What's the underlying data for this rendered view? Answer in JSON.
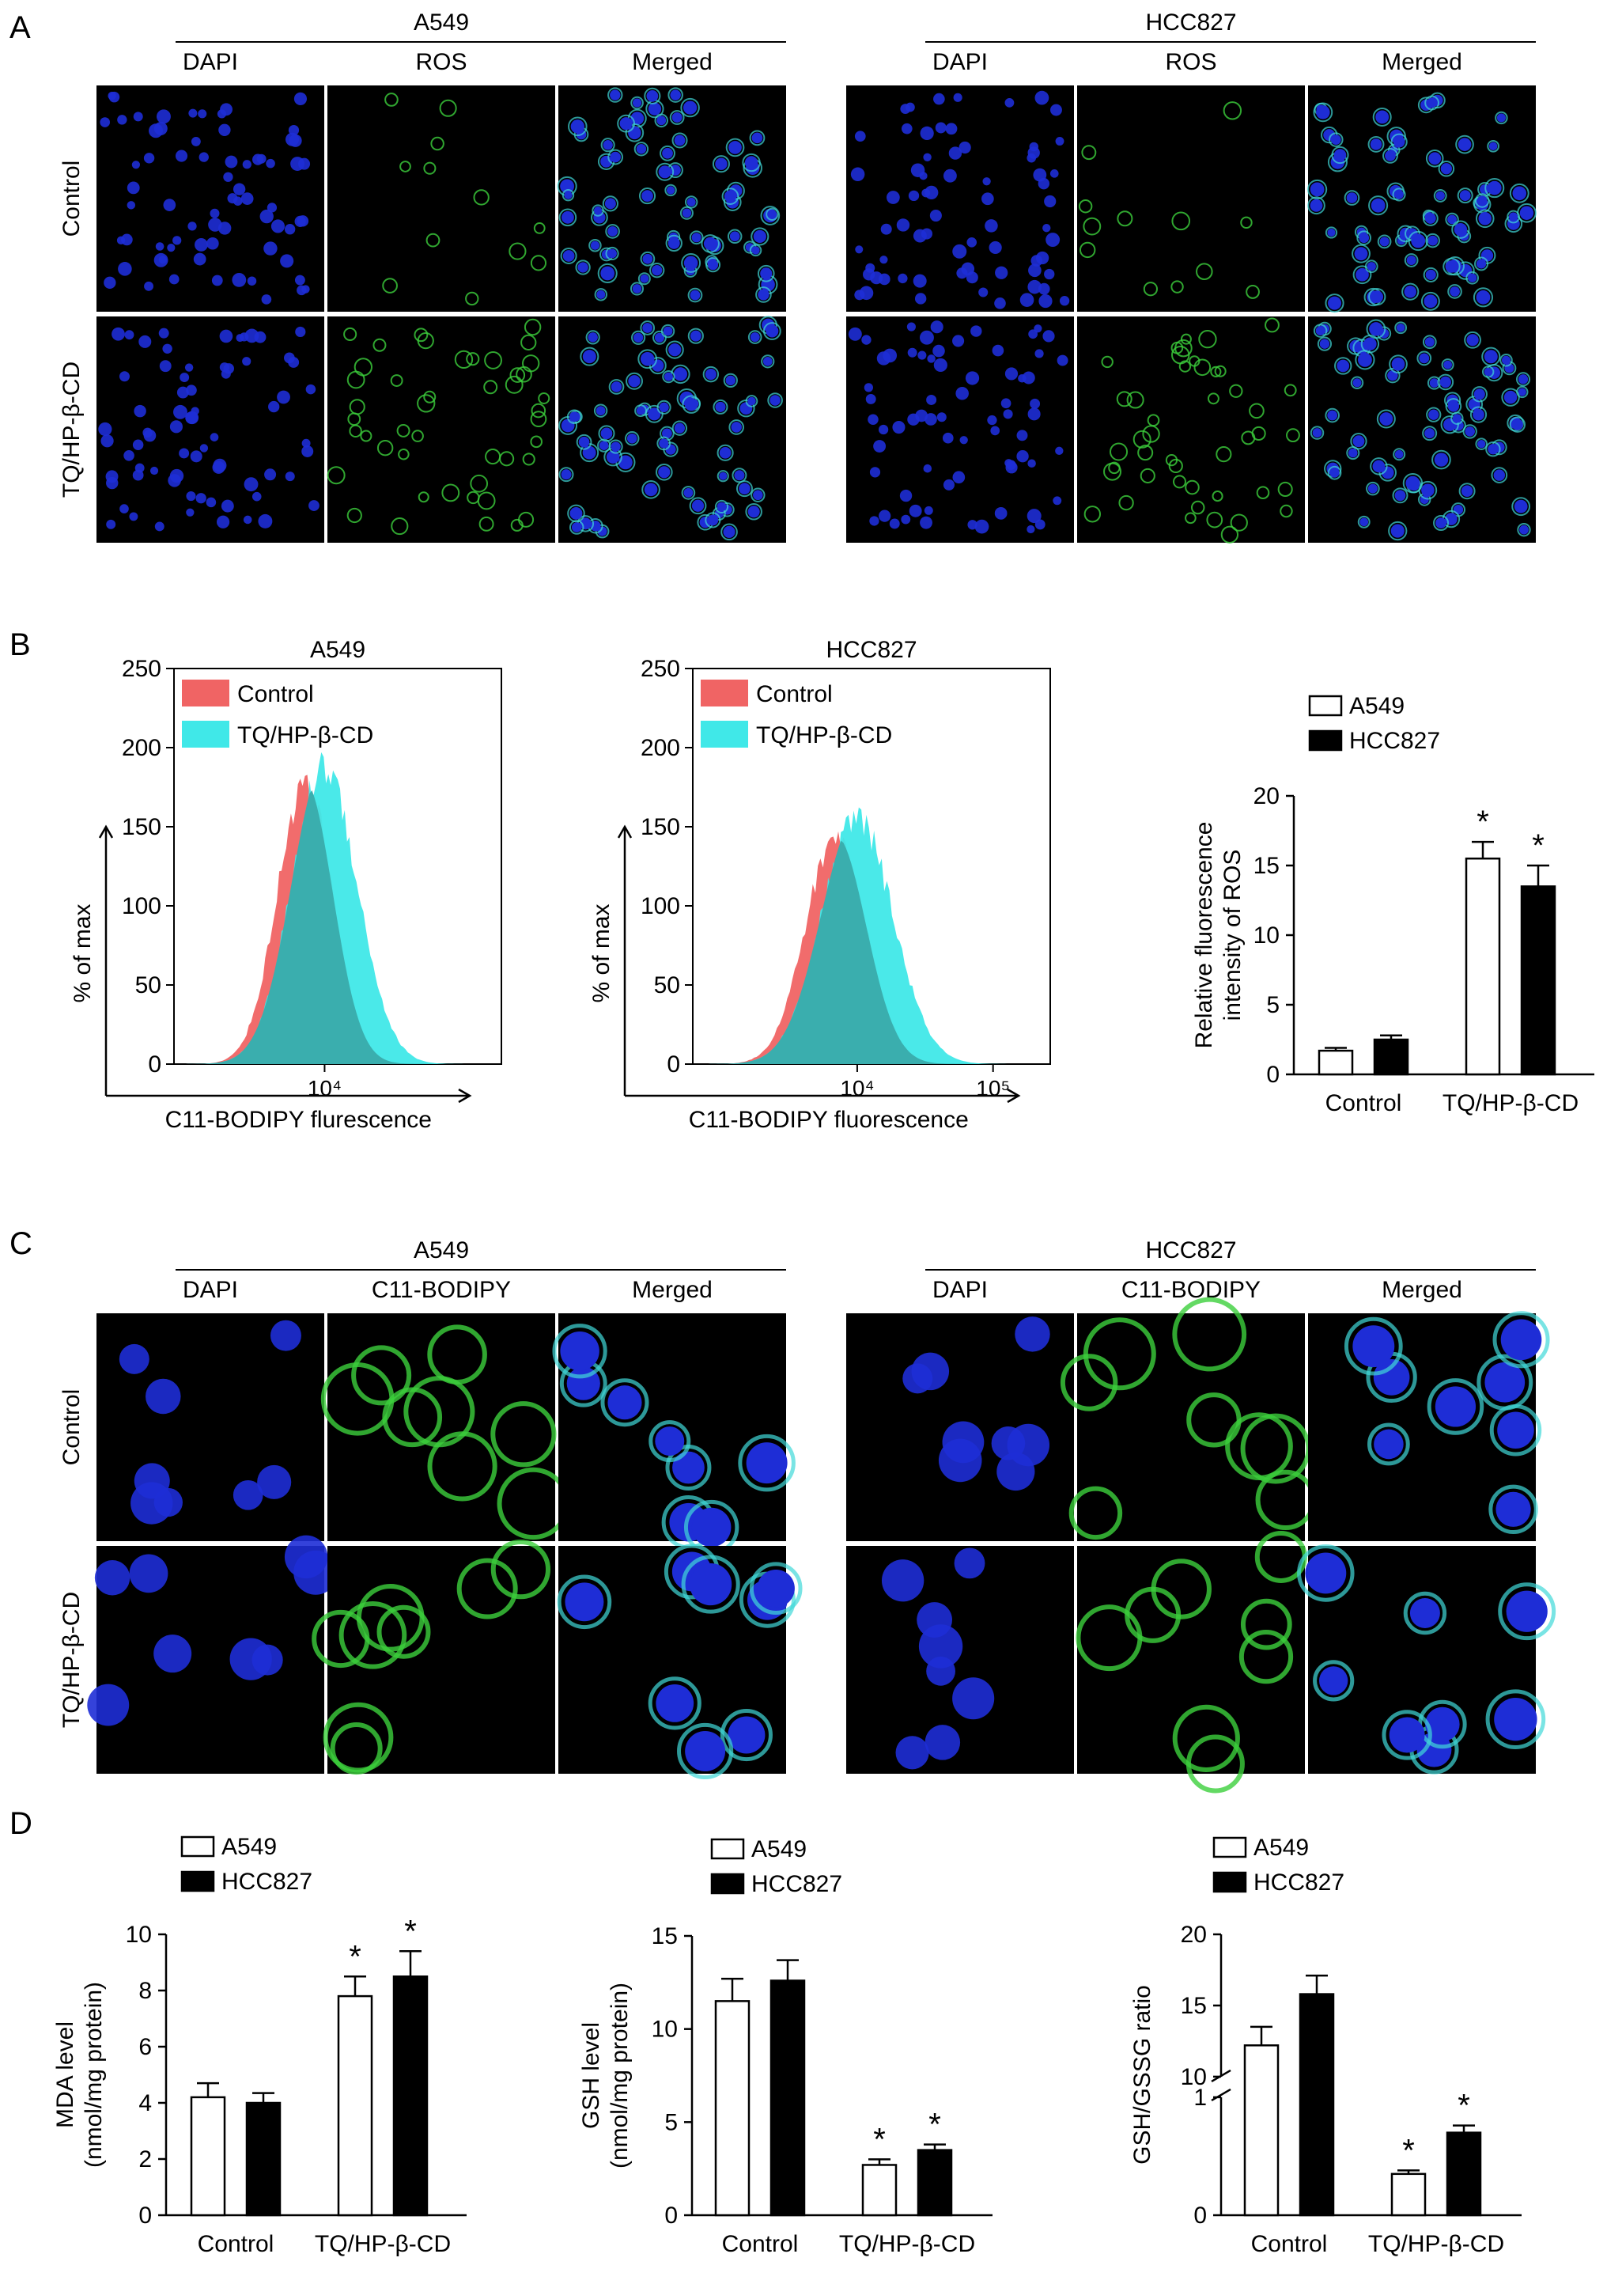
{
  "panel_letters": [
    "A",
    "B",
    "C",
    "D"
  ],
  "panel_a": {
    "groups": [
      {
        "name": "A549",
        "columns": [
          "DAPI",
          "ROS",
          "Merged"
        ]
      },
      {
        "name": "HCC827",
        "columns": [
          "DAPI",
          "ROS",
          "Merged"
        ]
      }
    ],
    "row_labels": [
      "Control",
      "TQ/HP-β-CD"
    ]
  },
  "panel_c": {
    "groups": [
      {
        "name": "A549",
        "columns": [
          "DAPI",
          "C11-BODIPY",
          "Merged"
        ]
      },
      {
        "name": "HCC827",
        "columns": [
          "DAPI",
          "C11-BODIPY",
          "Merged"
        ]
      }
    ],
    "row_labels": [
      "Control",
      "TQ/HP-β-CD"
    ]
  },
  "colors": {
    "dapi_blue": "#1e2dd6",
    "ros_green": "#3ccf3c",
    "merged_cyan": "#40d8d8",
    "hist_control": "#f06464",
    "hist_treated": "#40e8e8",
    "hist_overlap": "#3aaeae"
  },
  "chart_data": [
    {
      "type": "area",
      "title": "A549",
      "xlabel": "C11-BODIPY flurescence",
      "ylabel": "% of max",
      "ylim": [
        0,
        250
      ],
      "y_ticks": [
        "0",
        "50",
        "100",
        "150",
        "200",
        "250"
      ],
      "x_tick_labels": [
        "10⁴"
      ],
      "legend": [
        "Control",
        "TQ/HP-β-CD"
      ],
      "legend_position": "top-left",
      "series": [
        {
          "name": "Control",
          "peak": 188
        },
        {
          "name": "TQ/HP-β-CD",
          "peak": 200
        }
      ]
    },
    {
      "type": "area",
      "title": "HCC827",
      "xlabel": "C11-BODIPY fluorescence",
      "ylabel": "% of max",
      "ylim": [
        0,
        250
      ],
      "y_ticks": [
        "0",
        "50",
        "100",
        "150",
        "200",
        "250"
      ],
      "x_tick_labels": [
        "10⁴",
        "10⁵"
      ],
      "legend": [
        "Control",
        "TQ/HP-β-CD"
      ],
      "legend_position": "top-left",
      "series": [
        {
          "name": "Control",
          "peak": 152
        },
        {
          "name": "TQ/HP-β-CD",
          "peak": 165
        }
      ]
    },
    {
      "type": "bar",
      "ylabel": "Relative fluorescence intensity of ROS",
      "ylim": [
        0,
        20
      ],
      "y_ticks": [
        "0",
        "5",
        "10",
        "15",
        "20"
      ],
      "categories": [
        "Control",
        "TQ/HP-β-CD"
      ],
      "legend_position": "top",
      "series": [
        {
          "name": "A549",
          "values": [
            1.7,
            15.5
          ],
          "errors": [
            0.2,
            1.2
          ]
        },
        {
          "name": "HCC827",
          "values": [
            2.5,
            13.5
          ],
          "errors": [
            0.3,
            1.5
          ]
        }
      ],
      "significance": [
        "",
        "*"
      ]
    },
    {
      "type": "bar",
      "ylabel": "MDA level (nmol/mg protein)",
      "ylim": [
        0,
        10
      ],
      "y_ticks": [
        "0",
        "2",
        "4",
        "6",
        "8",
        "10"
      ],
      "categories": [
        "Control",
        "TQ/HP-β-CD"
      ],
      "legend_position": "top",
      "series": [
        {
          "name": "A549",
          "values": [
            4.2,
            7.8
          ],
          "errors": [
            0.5,
            0.7
          ]
        },
        {
          "name": "HCC827",
          "values": [
            4.0,
            8.5
          ],
          "errors": [
            0.35,
            0.9
          ]
        }
      ],
      "significance": [
        "",
        "*"
      ]
    },
    {
      "type": "bar",
      "ylabel": "GSH level (nmol/mg protein)",
      "ylim": [
        0,
        15
      ],
      "y_ticks": [
        "0",
        "5",
        "10",
        "15"
      ],
      "categories": [
        "Control",
        "TQ/HP-β-CD"
      ],
      "legend_position": "top",
      "series": [
        {
          "name": "A549",
          "values": [
            11.5,
            2.7
          ],
          "errors": [
            1.2,
            0.3
          ]
        },
        {
          "name": "HCC827",
          "values": [
            12.6,
            3.5
          ],
          "errors": [
            1.1,
            0.3
          ]
        }
      ],
      "significance": [
        "",
        "*"
      ]
    },
    {
      "type": "bar",
      "ylabel": "GSH/GSSG ratio",
      "y_ticks": [
        "0",
        "1",
        "10",
        "15",
        "20"
      ],
      "y_axis_break": true,
      "lower_ylim": [
        0,
        1
      ],
      "upper_ylim": [
        10,
        20
      ],
      "categories": [
        "Control",
        "TQ/HP-β-CD"
      ],
      "legend_position": "top",
      "series": [
        {
          "name": "A549",
          "values": [
            12.2,
            0.35
          ],
          "errors": [
            1.3,
            0.03
          ]
        },
        {
          "name": "HCC827",
          "values": [
            15.8,
            0.7
          ],
          "errors": [
            1.3,
            0.06
          ]
        }
      ],
      "significance": [
        "",
        "*"
      ]
    }
  ]
}
